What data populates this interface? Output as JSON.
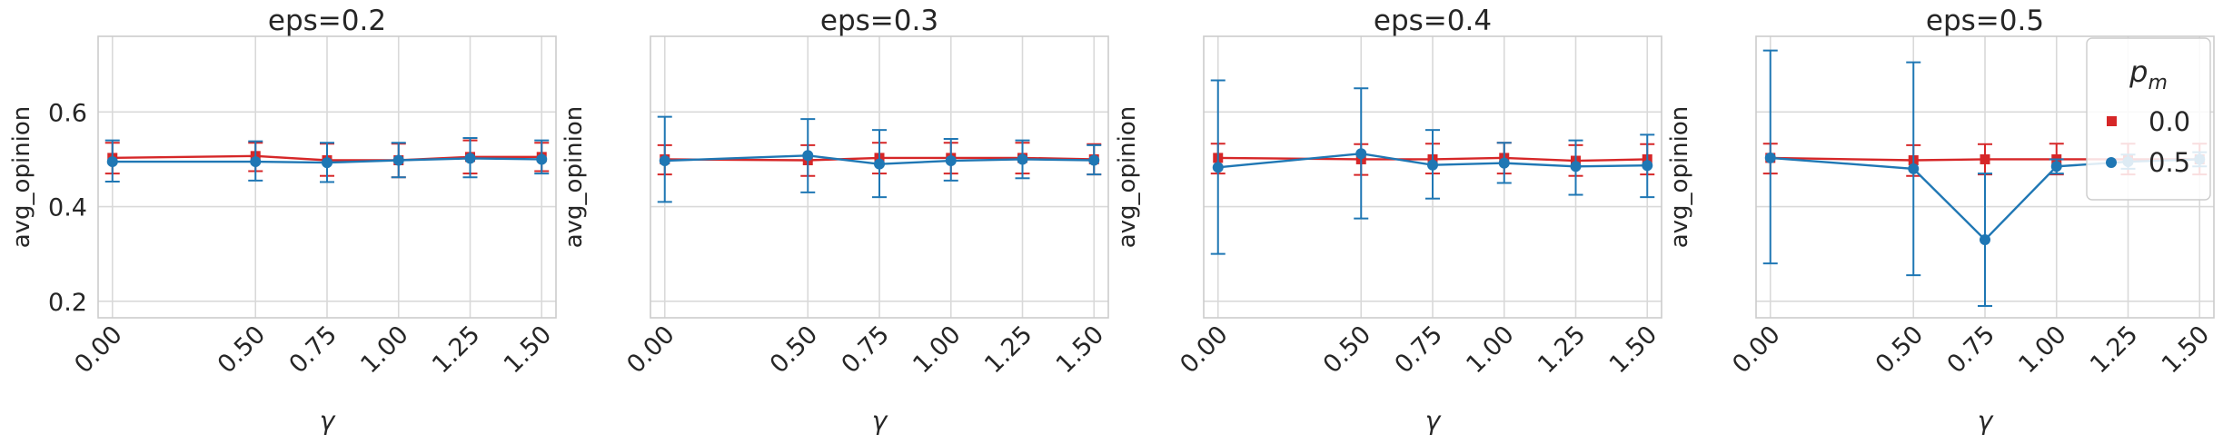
{
  "chart_data": [
    {
      "type": "line",
      "title": "eps=0.2",
      "xlabel": "γ",
      "ylabel": "avg_opinion",
      "x": [
        0.0,
        0.5,
        0.75,
        1.0,
        1.25,
        1.5
      ],
      "x_tick_labels": [
        "0.00",
        "0.50",
        "0.75",
        "1.00",
        "1.25",
        "1.50"
      ],
      "y_ticks": [
        0.2,
        0.4,
        0.6
      ],
      "y_tick_labels": [
        "0.2",
        "0.4",
        "0.6"
      ],
      "ylim": [
        0.165,
        0.76
      ],
      "grid": true,
      "series": [
        {
          "name": "0.0",
          "color": "#d62728",
          "marker": "square",
          "values": [
            0.503,
            0.507,
            0.498,
            0.498,
            0.505,
            0.505
          ],
          "err_low": [
            0.47,
            0.475,
            0.465,
            0.462,
            0.47,
            0.475
          ],
          "err_high": [
            0.535,
            0.535,
            0.533,
            0.533,
            0.54,
            0.535
          ]
        },
        {
          "name": "0.5",
          "color": "#1f77b4",
          "marker": "circle",
          "values": [
            0.495,
            0.495,
            0.493,
            0.498,
            0.502,
            0.5
          ],
          "err_low": [
            0.453,
            0.455,
            0.452,
            0.462,
            0.462,
            0.47
          ],
          "err_high": [
            0.54,
            0.538,
            0.535,
            0.535,
            0.545,
            0.54
          ]
        }
      ]
    },
    {
      "type": "line",
      "title": "eps=0.3",
      "xlabel": "γ",
      "ylabel": "avg_opinion",
      "x": [
        0.0,
        0.5,
        0.75,
        1.0,
        1.25,
        1.5
      ],
      "x_tick_labels": [
        "0.00",
        "0.50",
        "0.75",
        "1.00",
        "1.25",
        "1.50"
      ],
      "y_ticks": [
        0.2,
        0.4,
        0.6
      ],
      "y_tick_labels": [
        "",
        "",
        ""
      ],
      "ylim": [
        0.165,
        0.76
      ],
      "grid": true,
      "series": [
        {
          "name": "0.0",
          "color": "#d62728",
          "marker": "square",
          "values": [
            0.5,
            0.498,
            0.503,
            0.503,
            0.503,
            0.5
          ],
          "err_low": [
            0.468,
            0.465,
            0.47,
            0.47,
            0.47,
            0.468
          ],
          "err_high": [
            0.53,
            0.53,
            0.535,
            0.535,
            0.535,
            0.532
          ]
        },
        {
          "name": "0.5",
          "color": "#1f77b4",
          "marker": "circle",
          "values": [
            0.497,
            0.508,
            0.49,
            0.497,
            0.5,
            0.498
          ],
          "err_low": [
            0.41,
            0.43,
            0.42,
            0.455,
            0.46,
            0.468
          ],
          "err_high": [
            0.59,
            0.585,
            0.562,
            0.543,
            0.54,
            0.53
          ]
        }
      ]
    },
    {
      "type": "line",
      "title": "eps=0.4",
      "xlabel": "γ",
      "ylabel": "avg_opinion",
      "x": [
        0.0,
        0.5,
        0.75,
        1.0,
        1.25,
        1.5
      ],
      "x_tick_labels": [
        "0.00",
        "0.50",
        "0.75",
        "1.00",
        "1.25",
        "1.50"
      ],
      "y_ticks": [
        0.2,
        0.4,
        0.6
      ],
      "y_tick_labels": [
        "",
        "",
        ""
      ],
      "ylim": [
        0.165,
        0.76
      ],
      "grid": true,
      "series": [
        {
          "name": "0.0",
          "color": "#d62728",
          "marker": "square",
          "values": [
            0.503,
            0.5,
            0.5,
            0.503,
            0.497,
            0.5
          ],
          "err_low": [
            0.47,
            0.467,
            0.47,
            0.47,
            0.465,
            0.468
          ],
          "err_high": [
            0.533,
            0.532,
            0.533,
            0.535,
            0.53,
            0.532
          ]
        },
        {
          "name": "0.5",
          "color": "#1f77b4",
          "marker": "circle",
          "values": [
            0.483,
            0.512,
            0.488,
            0.492,
            0.485,
            0.487
          ],
          "err_low": [
            0.3,
            0.375,
            0.417,
            0.45,
            0.425,
            0.42
          ],
          "err_high": [
            0.667,
            0.65,
            0.562,
            0.535,
            0.54,
            0.552
          ]
        }
      ]
    },
    {
      "type": "line",
      "title": "eps=0.5",
      "xlabel": "γ",
      "ylabel": "avg_opinion",
      "x": [
        0.0,
        0.5,
        0.75,
        1.0,
        1.25,
        1.5
      ],
      "x_tick_labels": [
        "0.00",
        "0.50",
        "0.75",
        "1.00",
        "1.25",
        "1.50"
      ],
      "y_ticks": [
        0.2,
        0.4,
        0.6
      ],
      "y_tick_labels": [
        "",
        "",
        ""
      ],
      "ylim": [
        0.165,
        0.76
      ],
      "grid": true,
      "legend": {
        "title": "p_m",
        "title_display": "p",
        "title_sub": "m",
        "position": "top-right",
        "entries": [
          "0.0",
          "0.5"
        ]
      },
      "series": [
        {
          "name": "0.0",
          "color": "#d62728",
          "marker": "square",
          "values": [
            0.503,
            0.498,
            0.5,
            0.5,
            0.5,
            0.5
          ],
          "err_low": [
            0.47,
            0.465,
            0.468,
            0.468,
            0.468,
            0.468
          ],
          "err_high": [
            0.533,
            0.53,
            0.532,
            0.533,
            0.533,
            0.533
          ]
        },
        {
          "name": "0.5",
          "color": "#1f77b4",
          "marker": "circle",
          "values": [
            0.503,
            0.48,
            0.33,
            0.485,
            0.495,
            0.5
          ],
          "err_low": [
            0.28,
            0.255,
            0.19,
            0.47,
            0.48,
            0.485
          ],
          "err_high": [
            0.73,
            0.705,
            0.47,
            0.5,
            0.51,
            0.515
          ]
        }
      ]
    }
  ]
}
